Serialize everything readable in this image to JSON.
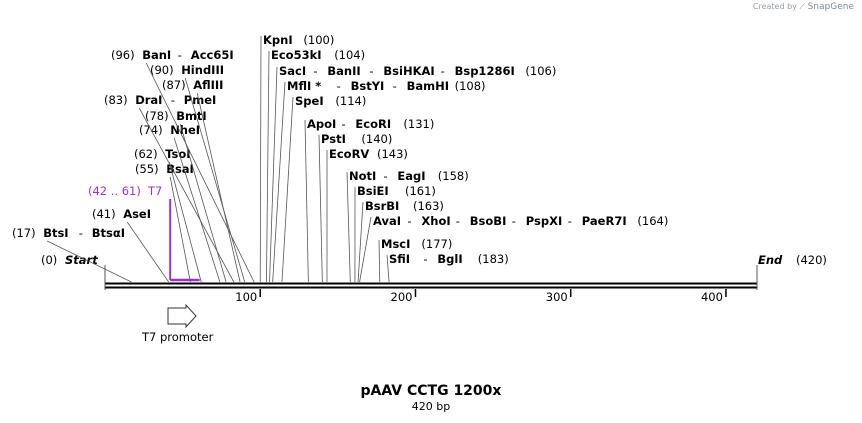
{
  "credit": {
    "prefix": "Created by",
    "brand": "SnapGene"
  },
  "title": "pAAV CCTG 1200x",
  "length_label": "420 bp",
  "sequence_length": 420,
  "colors": {
    "feature": "#9933cc",
    "line": "#000000",
    "leader": "#555555"
  },
  "ends": {
    "start": {
      "pos": "(0)",
      "name": "Start"
    },
    "end": {
      "name": "End",
      "pos": "(420)"
    }
  },
  "ticks": [
    "100",
    "200",
    "300",
    "400"
  ],
  "primer_feature": {
    "range": "(42 .. 61)",
    "name": "T7",
    "start": 42,
    "end": 61
  },
  "arrow_feature": {
    "name": "T7 promoter",
    "start": 42,
    "end": 61
  },
  "sites": [
    {
      "pos": "(17)",
      "names": [
        "BtsI",
        "BtsαI"
      ],
      "bp": 17,
      "dir": "L"
    },
    {
      "pos": "(41)",
      "names": [
        "AseI"
      ],
      "bp": 41,
      "dir": "L"
    },
    {
      "pos": "(55)",
      "names": [
        "BsaI"
      ],
      "bp": 55,
      "dir": "L"
    },
    {
      "pos": "(62)",
      "names": [
        "TsoI"
      ],
      "bp": 62,
      "dir": "L"
    },
    {
      "pos": "(74)",
      "names": [
        "NheI"
      ],
      "bp": 74,
      "dir": "L"
    },
    {
      "pos": "(78)",
      "names": [
        "BmtI"
      ],
      "bp": 78,
      "dir": "L"
    },
    {
      "pos": "(83)",
      "names": [
        "DraI",
        "PmeI"
      ],
      "bp": 83,
      "dir": "L"
    },
    {
      "pos": "(87)",
      "names": [
        "AflIII"
      ],
      "bp": 87,
      "dir": "L"
    },
    {
      "pos": "(90)",
      "names": [
        "HindIII"
      ],
      "bp": 90,
      "dir": "L"
    },
    {
      "pos": "(96)",
      "names": [
        "BanI",
        "Acc65I"
      ],
      "bp": 96,
      "dir": "L"
    },
    {
      "pos": "(100)",
      "names": [
        "KpnI"
      ],
      "bp": 100,
      "dir": "R"
    },
    {
      "pos": "(104)",
      "names": [
        "Eco53kI"
      ],
      "bp": 104,
      "dir": "R"
    },
    {
      "pos": "(106)",
      "names": [
        "SacI",
        "BanII",
        "BsiHKAI",
        "Bsp1286I"
      ],
      "bp": 106,
      "dir": "R"
    },
    {
      "pos": "(108)",
      "names": [
        "MflI *",
        "BstYI",
        "BamHI"
      ],
      "bp": 108,
      "dir": "R"
    },
    {
      "pos": "(114)",
      "names": [
        "SpeI"
      ],
      "bp": 114,
      "dir": "R"
    },
    {
      "pos": "(131)",
      "names": [
        "ApoI",
        "EcoRI"
      ],
      "bp": 131,
      "dir": "R"
    },
    {
      "pos": "(140)",
      "names": [
        "PstI"
      ],
      "bp": 140,
      "dir": "R"
    },
    {
      "pos": "(143)",
      "names": [
        "EcoRV"
      ],
      "bp": 143,
      "dir": "R"
    },
    {
      "pos": "(158)",
      "names": [
        "NotI",
        "EagI"
      ],
      "bp": 158,
      "dir": "R"
    },
    {
      "pos": "(161)",
      "names": [
        "BsiEI"
      ],
      "bp": 161,
      "dir": "R"
    },
    {
      "pos": "(163)",
      "names": [
        "BsrBI"
      ],
      "bp": 163,
      "dir": "R"
    },
    {
      "pos": "(164)",
      "names": [
        "AvaI",
        "XhoI",
        "BsoBI",
        "PspXI",
        "PaeR7I"
      ],
      "bp": 164,
      "dir": "R"
    },
    {
      "pos": "(177)",
      "names": [
        "MscI"
      ],
      "bp": 177,
      "dir": "R"
    },
    {
      "pos": "(183)",
      "names": [
        "SfiI",
        "BglI"
      ],
      "bp": 183,
      "dir": "R"
    }
  ]
}
